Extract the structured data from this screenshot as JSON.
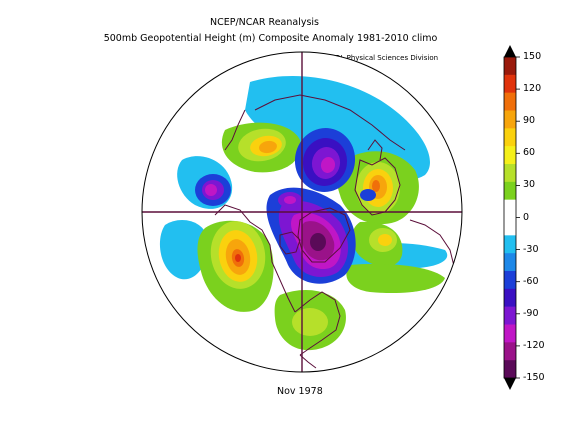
{
  "header": {
    "line1": "NCEP/NCAR Reanalysis",
    "line2": "500mb Geopotential Height (m) Composite Anomaly 1981-2010 climo",
    "credit": "NOAA/ESRL Physical Sciences Division"
  },
  "footer": {
    "period": "Nov 1978"
  },
  "colorbar": {
    "labels": [
      "150",
      "120",
      "90",
      "60",
      "30",
      "0",
      "-30",
      "-60",
      "-90",
      "-120",
      "-150"
    ],
    "colors": [
      "#9a1a0c",
      "#e0330c",
      "#f06f0a",
      "#f7a50c",
      "#fad10e",
      "#f5f01a",
      "#b6e02a",
      "#7bd11e",
      "#ffffff",
      "#ffffff",
      "#22bff0",
      "#1e88e8",
      "#1c3fd8",
      "#3a10c2",
      "#7d16d2",
      "#c016c6",
      "#9a1289",
      "#5a0a58"
    ],
    "value_range": [
      -150,
      150
    ]
  },
  "map": {
    "projection": "north polar stereographic",
    "anomaly_colors": {
      "neg_150": "#5a0a58",
      "neg_120": "#9a1289",
      "neg_90": "#c016c6",
      "neg_60": "#7d16d2",
      "neg_45": "#3a10c2",
      "neg_30": "#1c3fd8",
      "neg_15": "#22bff0",
      "pos_15": "#7bd11e",
      "pos_30": "#b6e02a",
      "pos_60": "#fad10e",
      "pos_90": "#f7a50c",
      "pos_120": "#f06f0a",
      "pos_150": "#e0330c"
    },
    "coast_color": "#5b0f3a"
  }
}
